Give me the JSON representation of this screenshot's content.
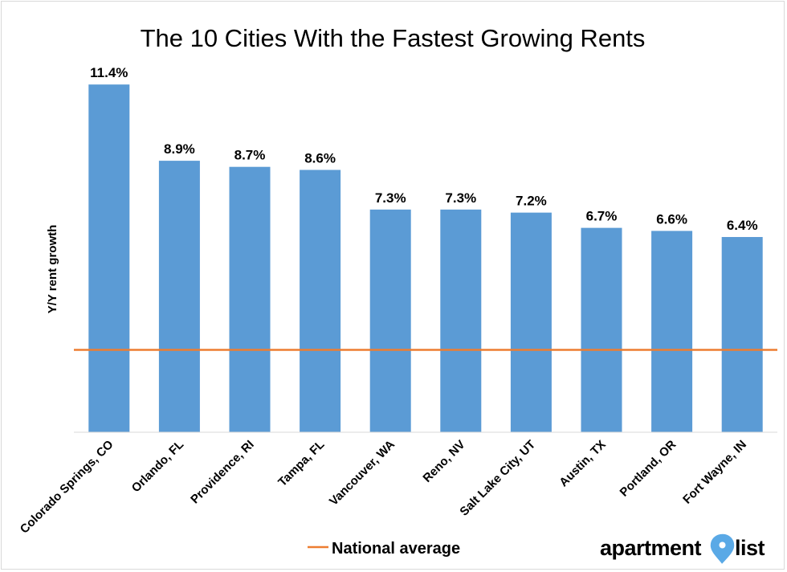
{
  "chart_data": {
    "type": "bar",
    "title": "The 10 Cities With the Fastest Growing Rents",
    "xlabel": "",
    "ylabel": "Y/Y rent growth",
    "categories": [
      "Colorado Springs, CO",
      "Orlando, FL",
      "Providence, RI",
      "Tampa, FL",
      "Vancouver, WA",
      "Reno, NV",
      "Salt Lake City, UT",
      "Austin, TX",
      "Portland, OR",
      "Fort Wayne, IN"
    ],
    "values": [
      11.4,
      8.9,
      8.7,
      8.6,
      7.3,
      7.3,
      7.2,
      6.7,
      6.6,
      6.4
    ],
    "value_labels": [
      "11.4%",
      "8.9%",
      "8.7%",
      "8.6%",
      "7.3%",
      "7.3%",
      "7.2%",
      "6.7%",
      "6.6%",
      "6.4%"
    ],
    "reference_line": {
      "name": "National average",
      "value": 2.7
    },
    "ylim": [
      0,
      11.8
    ],
    "grid": false,
    "legend": {
      "position": "bottom-left",
      "entries": [
        "National average"
      ]
    },
    "colors": {
      "bar": "#5b9bd5",
      "reference_line": "#ed7d31"
    }
  },
  "branding": {
    "logo_text": "apartmentlist",
    "logo_icon": "location-pin-icon",
    "logo_pin_color": "#5aa9e6"
  }
}
